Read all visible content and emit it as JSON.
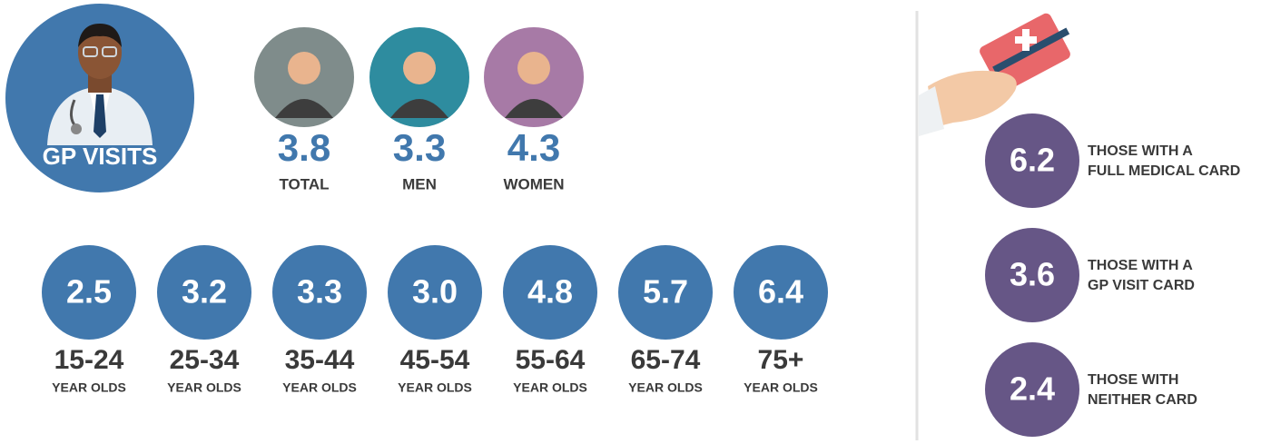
{
  "title": "GP VISITS",
  "groups": [
    {
      "value": "3.8",
      "label": "TOTAL"
    },
    {
      "value": "3.3",
      "label": "MEN"
    },
    {
      "value": "4.3",
      "label": "WOMEN"
    }
  ],
  "age_groups": [
    {
      "value": "2.5",
      "range": "15-24",
      "unit": "YEAR OLDS"
    },
    {
      "value": "3.2",
      "range": "25-34",
      "unit": "YEAR OLDS"
    },
    {
      "value": "3.3",
      "range": "35-44",
      "unit": "YEAR OLDS"
    },
    {
      "value": "3.0",
      "range": "45-54",
      "unit": "YEAR OLDS"
    },
    {
      "value": "4.8",
      "range": "55-64",
      "unit": "YEAR OLDS"
    },
    {
      "value": "5.7",
      "range": "65-74",
      "unit": "YEAR OLDS"
    },
    {
      "value": "6.4",
      "range": "75+",
      "unit": "YEAR OLDS"
    }
  ],
  "cards": [
    {
      "value": "6.2",
      "lines": [
        "THOSE WITH A",
        "FULL MEDICAL CARD"
      ]
    },
    {
      "value": "3.6",
      "lines": [
        "THOSE WITH A",
        "GP VISIT CARD"
      ]
    },
    {
      "value": "2.4",
      "lines": [
        "THOSE WITH",
        "NEITHER CARD"
      ]
    }
  ]
}
